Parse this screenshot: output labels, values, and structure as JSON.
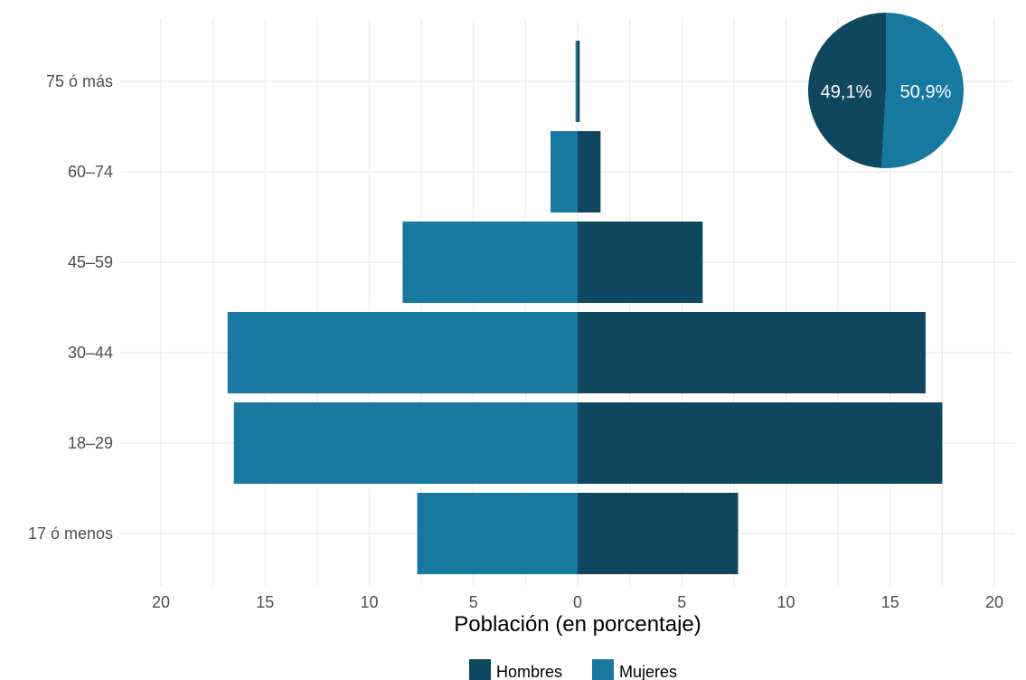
{
  "chart_data": [
    {
      "type": "bar",
      "orientation": "horizontal",
      "layout": "population-pyramid",
      "categories": [
        "17 ó menos",
        "18–29",
        "30–44",
        "45–59",
        "60–74",
        "75 ó más"
      ],
      "series": [
        {
          "name": "Hombres",
          "color": "#0f475e",
          "values": [
            7.7,
            17.5,
            16.7,
            6.0,
            1.1,
            0.1
          ]
        },
        {
          "name": "Mujeres",
          "color": "#17799f",
          "values": [
            7.7,
            16.5,
            16.8,
            8.4,
            1.3,
            0.1
          ]
        }
      ],
      "xlabel": "Población (en porcentaje)",
      "x_tick_labels": [
        "20",
        "15",
        "10",
        "5",
        "0",
        "5",
        "10",
        "15",
        "20"
      ],
      "xlim": [
        -20,
        20
      ],
      "grid": true,
      "legend_position": "bottom"
    },
    {
      "type": "pie",
      "slices": [
        {
          "label": "49,1%",
          "value": 49.1,
          "color": "#0f475e"
        },
        {
          "label": "50,9%",
          "value": 50.9,
          "color": "#17799f"
        }
      ]
    }
  ]
}
